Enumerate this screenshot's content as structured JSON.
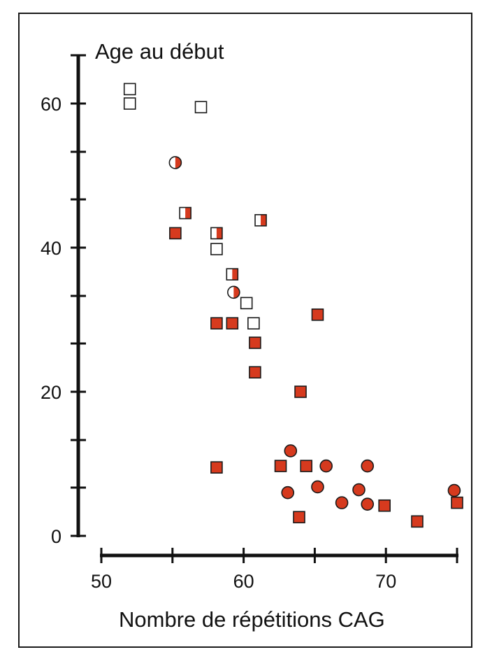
{
  "chart_data": {
    "type": "scatter",
    "title": "",
    "ylabel": "Age au début",
    "xlabel": "Nombre de répétitions CAG",
    "xlim": [
      50,
      75
    ],
    "ylim": [
      0,
      66
    ],
    "x_ticks": [
      50,
      55,
      60,
      65,
      70,
      75
    ],
    "x_tick_labels": [
      "50",
      "60",
      "70"
    ],
    "x_tick_label_values": [
      50,
      60,
      70
    ],
    "y_ticks": [
      0,
      6.7,
      13.3,
      20,
      26.7,
      33.3,
      40,
      46.7,
      53.3,
      60,
      66.7
    ],
    "y_tick_labels": [
      "0",
      "20",
      "40",
      "60"
    ],
    "y_tick_label_values": [
      0,
      20,
      40,
      60
    ],
    "grid": false,
    "colors": {
      "filled": "#d63a1e",
      "stroke": "#1a1a1a",
      "empty": "#ffffff"
    },
    "series": [
      {
        "marker": "square",
        "fill": "empty",
        "points": [
          [
            52.0,
            62.0
          ],
          [
            52.0,
            60.0
          ],
          [
            57.0,
            59.5
          ],
          [
            58.1,
            39.8
          ],
          [
            60.2,
            32.3
          ],
          [
            60.7,
            29.5
          ]
        ]
      },
      {
        "marker": "square",
        "fill": "half",
        "points": [
          [
            55.9,
            44.8
          ],
          [
            58.1,
            42.0
          ],
          [
            59.2,
            36.3
          ],
          [
            61.2,
            43.8
          ]
        ]
      },
      {
        "marker": "circle",
        "fill": "half",
        "points": [
          [
            55.2,
            51.8
          ],
          [
            59.3,
            33.8
          ]
        ]
      },
      {
        "marker": "square",
        "fill": "filled",
        "points": [
          [
            55.2,
            42.0
          ],
          [
            58.1,
            29.5
          ],
          [
            59.2,
            29.5
          ],
          [
            60.8,
            26.8
          ],
          [
            60.8,
            22.7
          ],
          [
            64.0,
            20.0
          ],
          [
            65.2,
            30.7
          ],
          [
            58.1,
            9.5
          ],
          [
            62.6,
            9.7
          ],
          [
            64.4,
            9.7
          ],
          [
            63.9,
            2.6
          ],
          [
            69.9,
            4.2
          ],
          [
            72.2,
            2.0
          ],
          [
            75.0,
            4.6
          ]
        ]
      },
      {
        "marker": "circle",
        "fill": "filled",
        "points": [
          [
            63.3,
            11.8
          ],
          [
            63.1,
            6.0
          ],
          [
            65.2,
            6.8
          ],
          [
            65.8,
            9.7
          ],
          [
            66.9,
            4.6
          ],
          [
            68.1,
            6.4
          ],
          [
            68.7,
            9.7
          ],
          [
            68.7,
            4.4
          ],
          [
            74.8,
            6.3
          ]
        ]
      }
    ]
  }
}
